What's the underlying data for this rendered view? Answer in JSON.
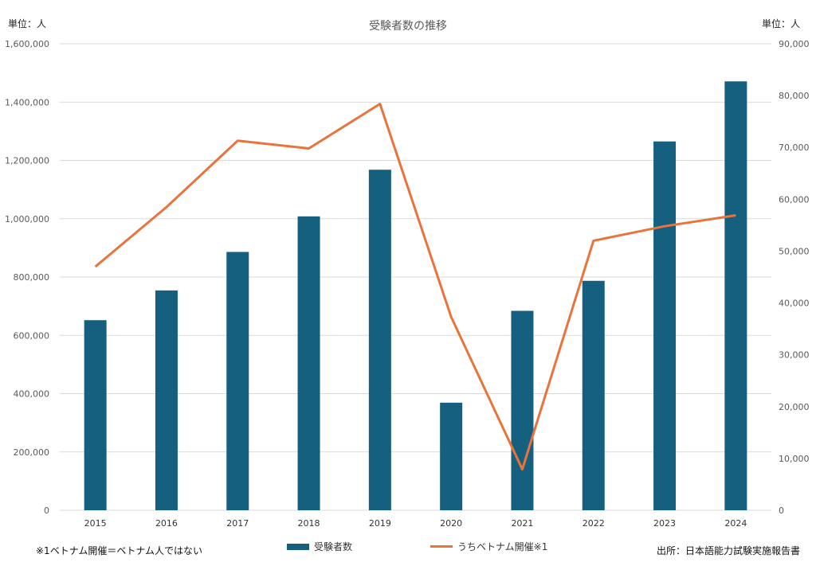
{
  "labels": {
    "title": "受験者数の推移",
    "left_unit": "単位：人",
    "right_unit": "単位：人",
    "footnote": "※1ベトナム開催＝ベトナム人ではない",
    "source": "出所：日本語能力試験実施報告書"
  },
  "colors": {
    "bar": "#15607f",
    "line": "#e8743b",
    "grid": "#d9d9d9",
    "tick_text": "#595959"
  },
  "chart_data": {
    "type": "bar",
    "title": "受験者数の推移",
    "categories": [
      "2015",
      "2016",
      "2017",
      "2018",
      "2019",
      "2020",
      "2021",
      "2022",
      "2023",
      "2024"
    ],
    "series": [
      {
        "name": "受験者数",
        "type": "bar",
        "axis": "left",
        "values": [
          652000,
          754000,
          886000,
          1008000,
          1168000,
          369000,
          684000,
          787000,
          1265000,
          1471000
        ]
      },
      {
        "name": "うちベトナム開催※1",
        "type": "line",
        "axis": "right",
        "values": [
          47000,
          58500,
          71300,
          69800,
          78400,
          37300,
          7900,
          52000,
          54800,
          56900
        ]
      }
    ],
    "y_left": {
      "min": 0,
      "max": 1600000,
      "ticks": [
        "0",
        "200,000",
        "400,000",
        "600,000",
        "800,000",
        "1,000,000",
        "1,200,000",
        "1,400,000",
        "1,600,000"
      ]
    },
    "y_right": {
      "min": 0,
      "max": 90000,
      "ticks": [
        "0",
        "10,000",
        "20,000",
        "30,000",
        "40,000",
        "50,000",
        "60,000",
        "70,000",
        "80,000",
        "90,000"
      ]
    },
    "grid": true,
    "legend": "bottom"
  }
}
